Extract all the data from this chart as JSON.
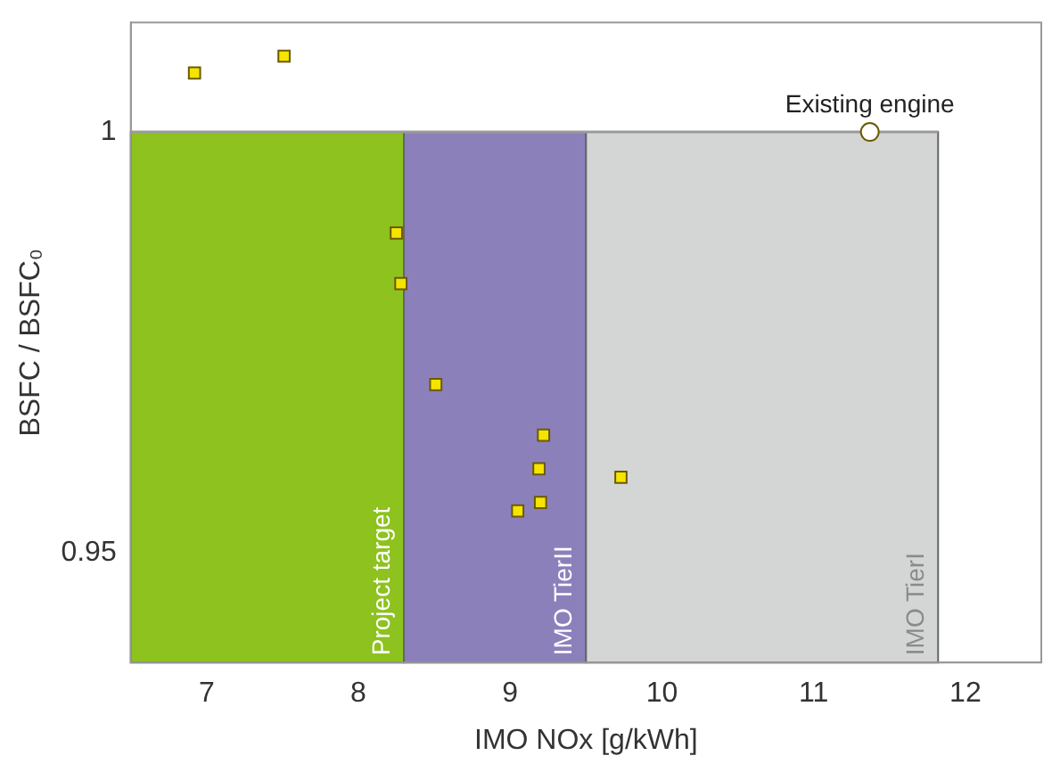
{
  "chart_data": {
    "type": "scatter",
    "xlabel": "IMO NOx [g/kWh]",
    "ylabel": "BSFC / BSFC₀",
    "xlim": [
      6.5,
      12.5
    ],
    "xticks": [
      7,
      8,
      9,
      10,
      11,
      12
    ],
    "ylim": [
      0.937,
      1.013
    ],
    "yticks": [
      0.95,
      1
    ],
    "grid": false,
    "legend": false,
    "series": [
      {
        "color": "#f5e400",
        "marker": "square",
        "x": [
          6.92,
          7.51,
          8.25,
          8.28,
          8.51,
          9.22,
          9.19,
          9.2,
          9.05,
          9.73
        ],
        "values": [
          1.007,
          1.009,
          0.988,
          0.982,
          0.97,
          0.964,
          0.96,
          0.956,
          0.955,
          0.959
        ]
      },
      {
        "name": "Existing engine",
        "color": "#ffffff",
        "marker": "circle",
        "x": [
          11.37
        ],
        "values": [
          1.0
        ]
      }
    ],
    "ref_lines": [
      {
        "axis": "y",
        "value": 1,
        "color": "#9a9a9a"
      }
    ],
    "bands": [
      {
        "axis": "x",
        "from": 6.5,
        "to": 8.3,
        "label": "Project target",
        "color": "#8dc21f"
      },
      {
        "axis": "x",
        "from": 8.3,
        "to": 9.5,
        "label": "IMO TierII",
        "color": "#8c80bb"
      },
      {
        "axis": "x",
        "from": 9.5,
        "to": 11.82,
        "label": "IMO TierI",
        "color": "#d4d6d5"
      }
    ]
  }
}
